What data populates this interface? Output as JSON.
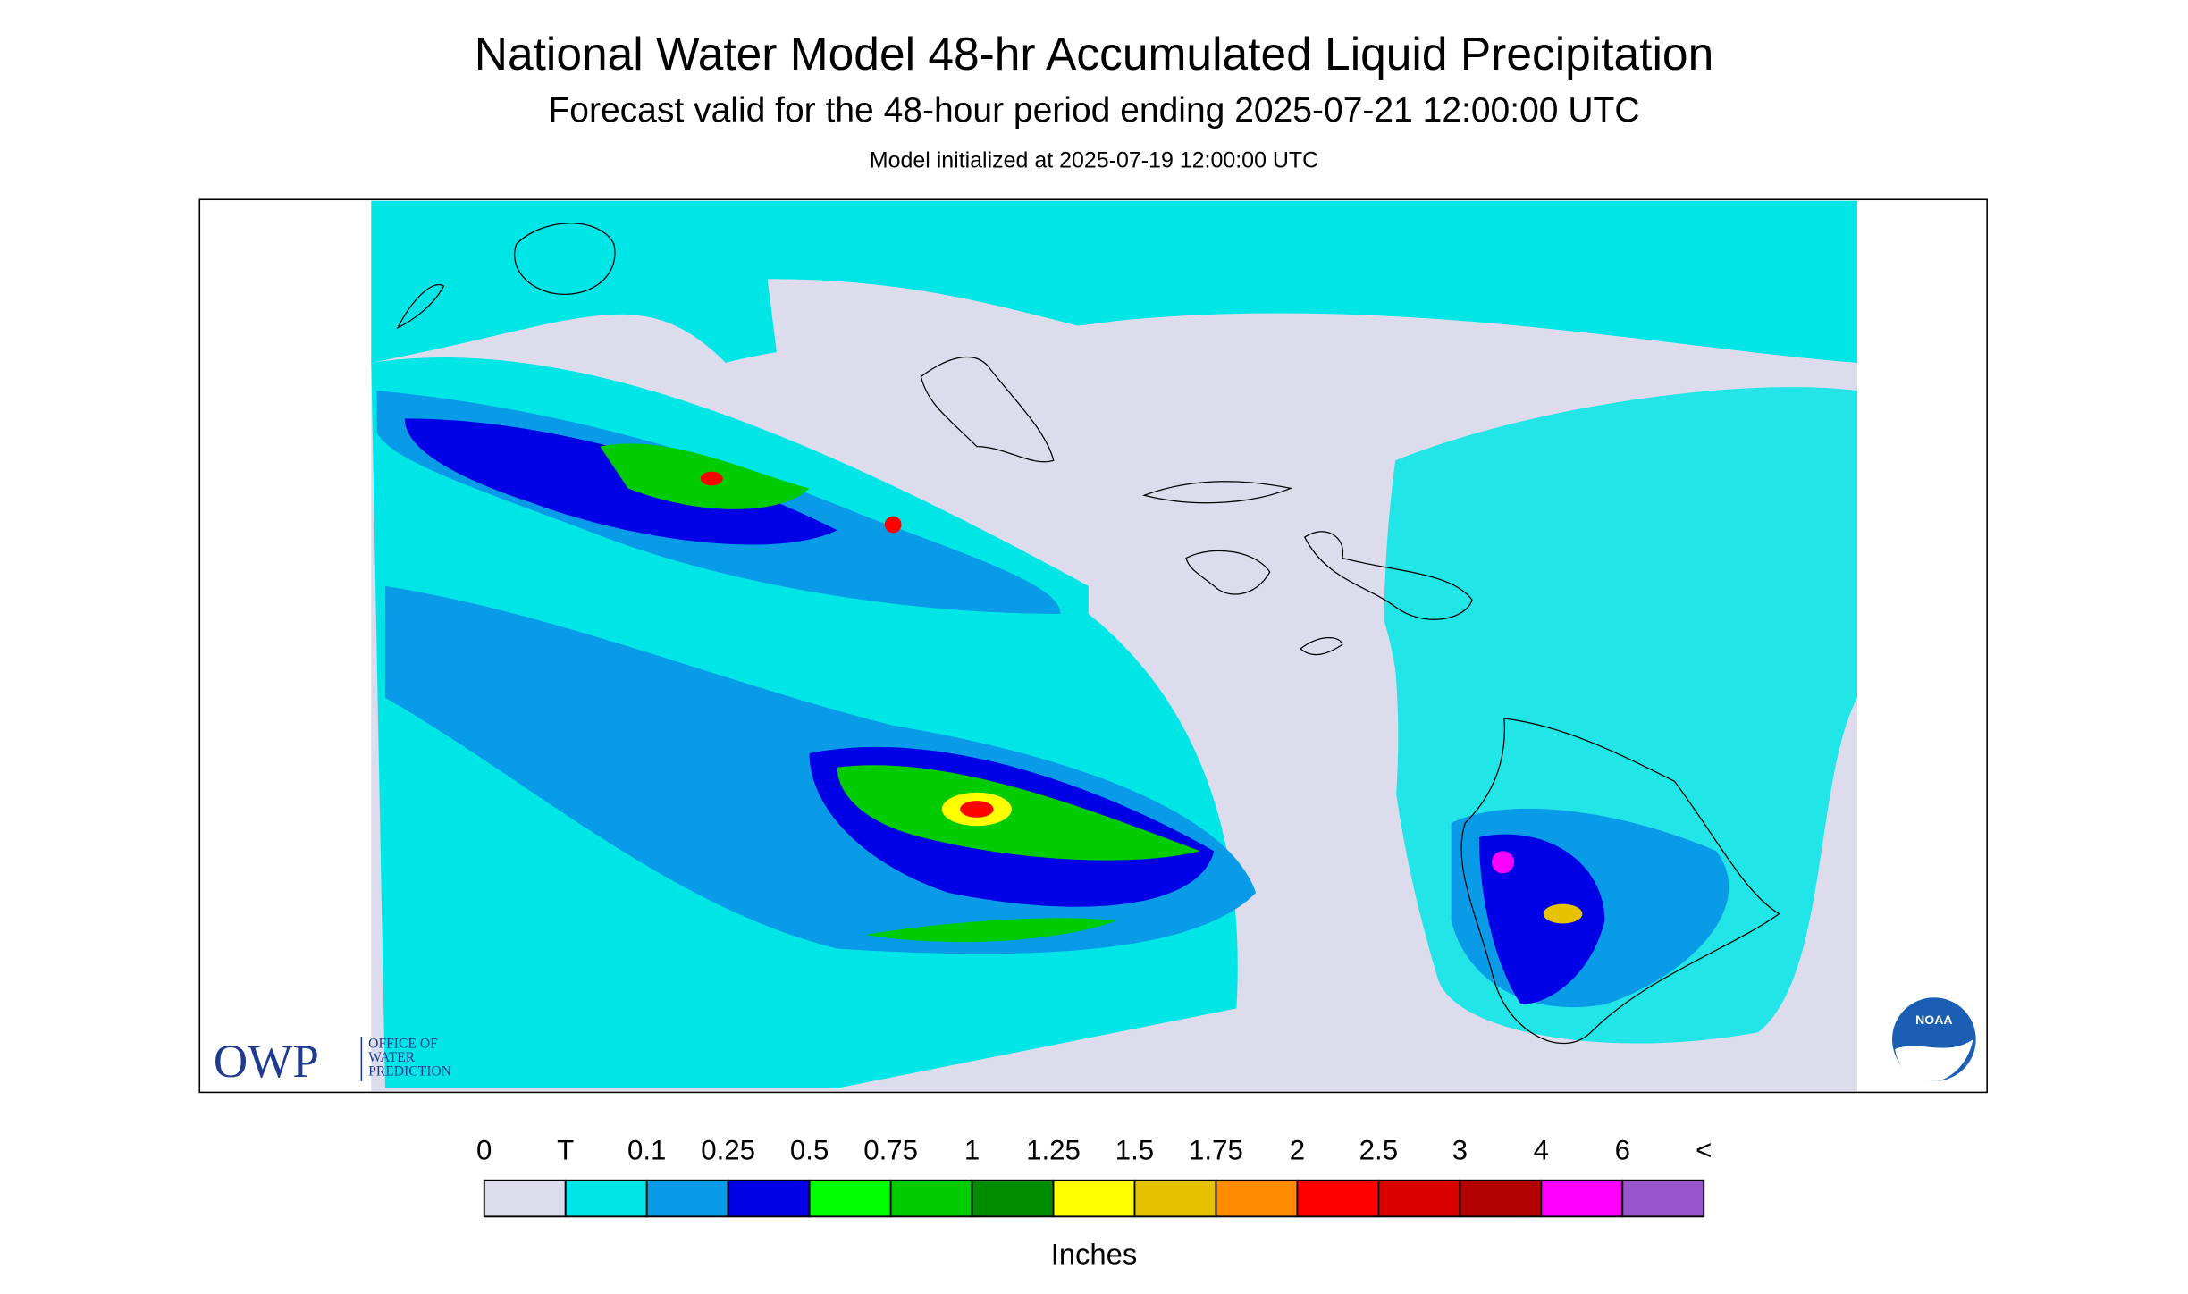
{
  "header": {
    "title": "National Water Model 48-hr Accumulated Liquid Precipitation",
    "subtitle": "Forecast valid for the 48-hour period ending 2025-07-21 12:00:00 UTC",
    "initialized": "Model initialized at 2025-07-19 12:00:00 UTC"
  },
  "legend": {
    "labels": [
      "0",
      "T",
      "0.1",
      "0.25",
      "0.5",
      "0.75",
      "1",
      "1.25",
      "1.5",
      "1.75",
      "2",
      "2.5",
      "3",
      "4",
      "6",
      "<"
    ],
    "colors": [
      "#dcdcec",
      "#00e6e6",
      "#0a9be8",
      "#0000e6",
      "#00ff00",
      "#00cc00",
      "#008c00",
      "#ffff00",
      "#e6c200",
      "#ff8c00",
      "#ff0000",
      "#d90000",
      "#b30000",
      "#ff00ff",
      "#9955cc"
    ],
    "unit": "Inches"
  },
  "logo": {
    "owp": "OWP",
    "office": [
      "OFFICE OF",
      "WATER",
      "PREDICTION"
    ],
    "noaa": "NOAA"
  }
}
